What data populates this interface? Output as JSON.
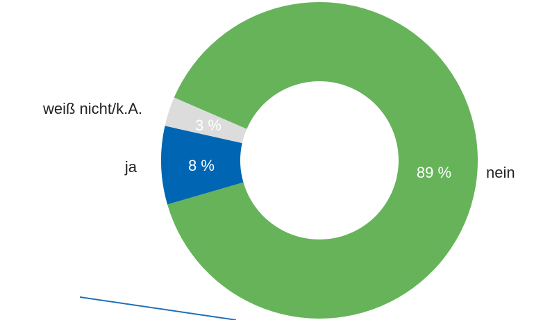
{
  "chart_data": {
    "type": "donut",
    "categories": [
      "ja",
      "weiß nicht/k.A.",
      "nein"
    ],
    "values": [
      8,
      3,
      89
    ],
    "value_labels": [
      "8 %",
      "3 %",
      "89 %"
    ],
    "colors": [
      "#0066b3",
      "#dcdcdc",
      "#66b35a"
    ]
  }
}
